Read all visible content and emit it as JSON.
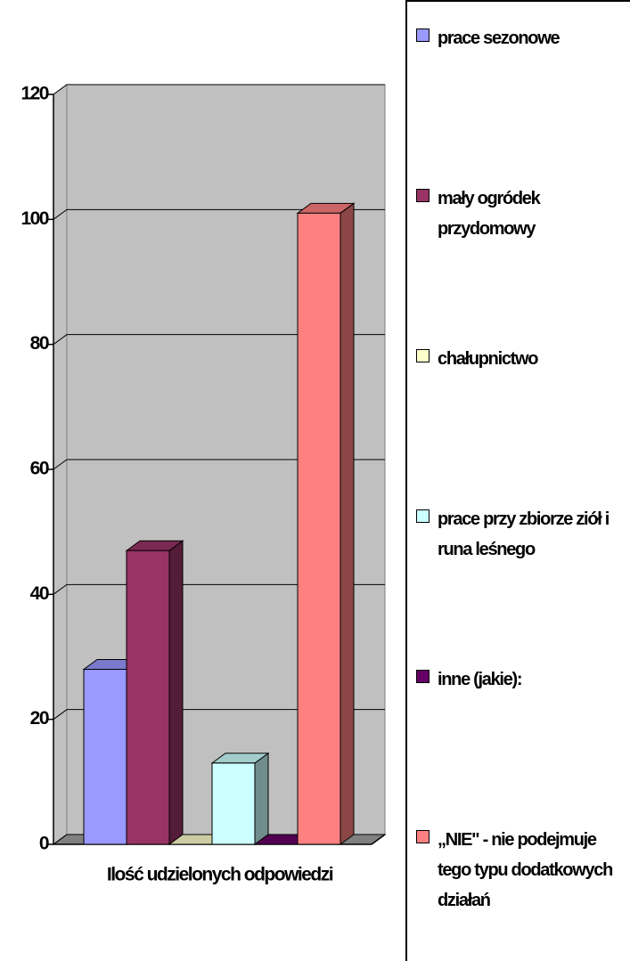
{
  "chart_data": {
    "type": "bar3d",
    "categories": [
      "Ilość udzielonych odpowiedzi"
    ],
    "series": [
      {
        "name": "prace sezonowe",
        "color": "#9999ff",
        "values": [
          28
        ]
      },
      {
        "name": "mały ogródek przydomowy",
        "color": "#993366",
        "values": [
          47
        ]
      },
      {
        "name": "chałupnictwo",
        "color": "#ffffcc",
        "values": [
          0
        ]
      },
      {
        "name": "prace przy zbiorze ziół i runa leśnego",
        "color": "#ccffff",
        "values": [
          13
        ]
      },
      {
        "name": "inne (jakie):",
        "color": "#660066",
        "values": [
          0
        ]
      },
      {
        "name": "„NIE\" - nie podejmuje tego typu dodatkowych działań",
        "color": "#ff8080",
        "values": [
          101
        ]
      }
    ],
    "ylim": [
      0,
      120
    ],
    "yticks": [
      0,
      20,
      40,
      60,
      80,
      100,
      120
    ],
    "grid": true,
    "legend": "right"
  }
}
